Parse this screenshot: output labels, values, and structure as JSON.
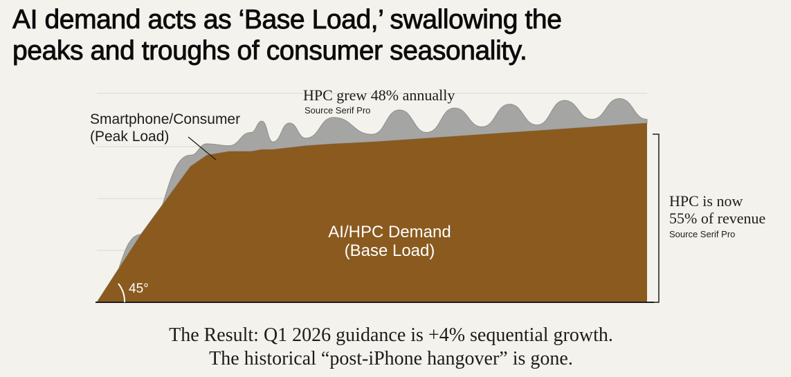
{
  "headline": {
    "line1": "AI demand acts as ‘Base Load,’ swallowing the",
    "line2": "peaks and troughs of consumer seasonality."
  },
  "chart_data": {
    "type": "area",
    "layers": [
      {
        "name": "AI/HPC Demand (Base Load)",
        "color": "#8a5a1f"
      },
      {
        "name": "Smartphone/Consumer (Peak Load)",
        "color": "#a5a5a3"
      }
    ],
    "x": [
      0,
      0.08,
      0.17,
      0.2,
      0.24,
      0.28,
      0.3,
      0.32,
      0.35,
      0.38,
      0.43,
      0.5,
      0.55,
      0.6,
      0.65,
      0.7,
      0.75,
      0.8,
      0.85,
      0.9,
      0.95,
      1
    ],
    "base": [
      0,
      0.36,
      0.72,
      0.78,
      0.8,
      0.8,
      0.81,
      0.81,
      0.82,
      0.83,
      0.84,
      0.85,
      0.86,
      0.87,
      0.88,
      0.89,
      0.9,
      0.91,
      0.92,
      0.93,
      0.94,
      0.95
    ],
    "top": [
      0,
      0.36,
      0.78,
      0.84,
      0.83,
      0.9,
      0.96,
      0.85,
      0.95,
      0.87,
      0.98,
      0.89,
      1.02,
      0.9,
      1.03,
      0.93,
      1.05,
      0.94,
      1.07,
      0.97,
      1.08,
      0.97
    ],
    "annotations": {
      "peak_label_line1": "Smartphone/Consumer",
      "peak_label_line2": "(Peak Load)",
      "hpc_growth": "HPC grew 48% annually",
      "hpc_growth_source": "Source Serif Pro",
      "base_label_line1": "AI/HPC Demand",
      "base_label_line2": "(Base Load)",
      "angle": "45°",
      "share_line1": "HPC is now",
      "share_line2": "55% of revenue",
      "share_source": "Source Serif Pro"
    },
    "grid": true,
    "legend": "none"
  },
  "footer": {
    "line1": "The Result: Q1 2026 guidance is +4% sequential growth.",
    "line2": "The historical “post-iPhone hangover” is gone."
  },
  "colors": {
    "background": "#f3f2ed",
    "base_fill": "#8a5a1f",
    "peak_fill": "#a5a5a3",
    "text": "#1c1c1c"
  }
}
